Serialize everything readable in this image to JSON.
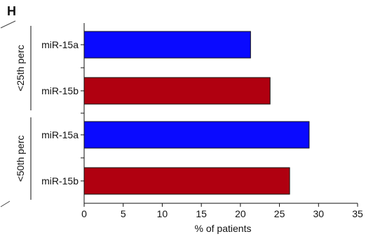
{
  "panel_label": "H",
  "chart_data": {
    "type": "bar",
    "orientation": "horizontal",
    "xlabel": "% of patients",
    "xlim": [
      0,
      35
    ],
    "xticks": [
      0,
      5,
      10,
      15,
      20,
      25,
      30,
      35
    ],
    "grid": false,
    "groups": [
      {
        "label": "<25th perc",
        "bars": [
          {
            "label": "miR-15a",
            "value": 21.3,
            "color": "#0a0aff"
          },
          {
            "label": "miR-15b",
            "value": 23.8,
            "color": "#b00010"
          }
        ]
      },
      {
        "label": "<50th perc",
        "bars": [
          {
            "label": "miR-15a",
            "value": 28.8,
            "color": "#0a0aff"
          },
          {
            "label": "miR-15b",
            "value": 26.3,
            "color": "#b00010"
          }
        ]
      }
    ]
  }
}
